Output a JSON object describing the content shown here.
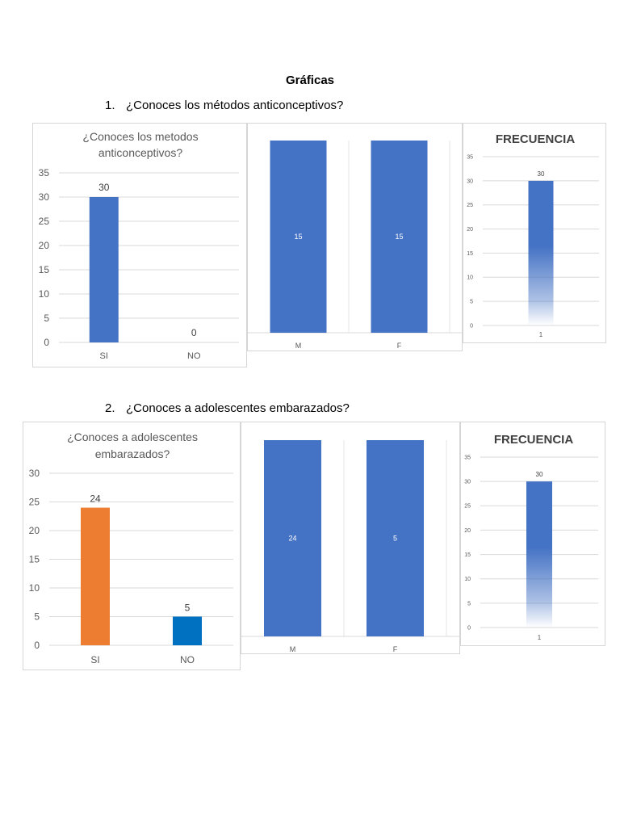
{
  "document": {
    "title": "Gráficas",
    "questions": [
      {
        "number": "1.",
        "text": "¿Conoces los métodos anticonceptivos?"
      },
      {
        "number": "2.",
        "text": "¿Conoces a adolescentes embarazados?"
      }
    ]
  },
  "colors": {
    "blue": "#4472c4",
    "orange": "#ed7d31",
    "dark_blue": "#0070c0",
    "grid": "#d9d9d9",
    "text": "#595959"
  },
  "chart_data": [
    {
      "id": "q1-answers",
      "type": "bar",
      "title_lines": [
        "¿Conoces los metodos",
        "anticonceptivos?"
      ],
      "categories": [
        "SI",
        "NO"
      ],
      "values": [
        30,
        0
      ],
      "data_labels": [
        "30",
        "0"
      ],
      "bar_colors": [
        "#4472c4",
        "#4472c4"
      ],
      "ylim": [
        0,
        35
      ],
      "yticks": [
        0,
        5,
        10,
        15,
        20,
        25,
        30,
        35
      ],
      "grid": true
    },
    {
      "id": "q1-gender",
      "type": "bar",
      "categories": [
        "M",
        "F"
      ],
      "values": [
        15,
        15
      ],
      "data_labels": [
        "15",
        "15"
      ],
      "bar_colors": [
        "#4472c4",
        "#4472c4"
      ],
      "grid": false
    },
    {
      "id": "q1-frecuencia",
      "type": "bar",
      "title": "FRECUENCIA",
      "categories": [
        "1"
      ],
      "values": [
        30
      ],
      "data_labels": [
        "30"
      ],
      "bar_colors": [
        "#4472c4"
      ],
      "gradient_fill": true,
      "ylim": [
        0,
        35
      ],
      "yticks": [
        0,
        5,
        10,
        15,
        20,
        25,
        30,
        35
      ],
      "grid": true
    },
    {
      "id": "q2-answers",
      "type": "bar",
      "title_lines": [
        "¿Conoces a adolescentes",
        "embarazados?"
      ],
      "categories": [
        "SI",
        "NO"
      ],
      "values": [
        24,
        5
      ],
      "data_labels": [
        "24",
        "5"
      ],
      "bar_colors": [
        "#ed7d31",
        "#0070c0"
      ],
      "ylim": [
        0,
        30
      ],
      "yticks": [
        0,
        5,
        10,
        15,
        20,
        25,
        30
      ],
      "grid": true
    },
    {
      "id": "q2-gender",
      "type": "bar",
      "categories": [
        "M",
        "F"
      ],
      "values": [
        24,
        5
      ],
      "data_labels": [
        "24",
        "5"
      ],
      "bar_colors": [
        "#4472c4",
        "#4472c4"
      ],
      "grid": false
    },
    {
      "id": "q2-frecuencia",
      "type": "bar",
      "title": "FRECUENCIA",
      "categories": [
        "1"
      ],
      "values": [
        30
      ],
      "data_labels": [
        "30"
      ],
      "bar_colors": [
        "#4472c4"
      ],
      "gradient_fill": true,
      "ylim": [
        0,
        35
      ],
      "yticks": [
        0,
        5,
        10,
        15,
        20,
        25,
        30,
        35
      ],
      "grid": true
    }
  ]
}
